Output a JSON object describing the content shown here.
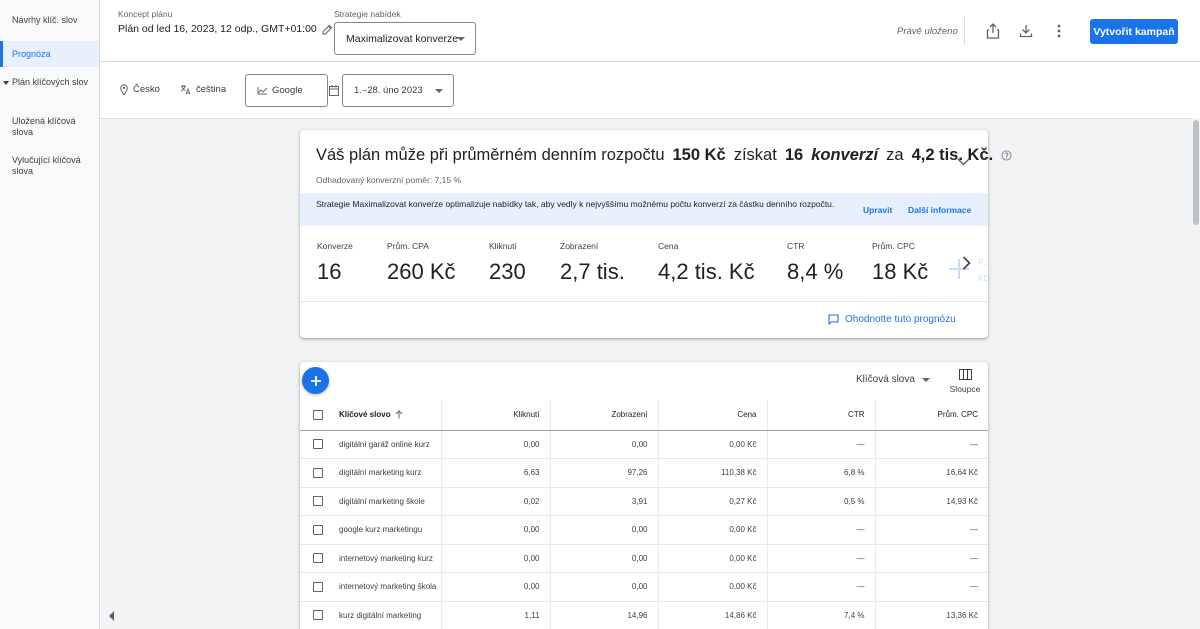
{
  "sidebar": {
    "items": [
      {
        "label": "Návrhy klíč. slov"
      },
      {
        "label": "Prognóza"
      },
      {
        "label": "Plán klíčových slov"
      },
      {
        "label": "Uložená klíčová slova"
      },
      {
        "label": "Vylučující klíčová slova"
      }
    ],
    "collapse_icon": "chevron-left-icon"
  },
  "header": {
    "plan_label": "Koncept plánu",
    "plan_name": "Plán od led 16, 2023, 12 odp., GMT+01:00",
    "strategy_label": "Strategie nabídek",
    "strategy_value": "Maximalizovat konverze",
    "saved_status": "Právě uloženo",
    "share_icon": "share-icon",
    "download_icon": "download-icon",
    "more_icon": "more-vert-icon",
    "create_campaign": "Vytvořit kampaň",
    "accent_color": "#1a73e8"
  },
  "filters": {
    "location": "Česko",
    "language": "čeština",
    "network": "Google",
    "date_range": "1.–28. úno 2023"
  },
  "forecast": {
    "headline_1": "Váš plán může při průměrném denním rozpočtu",
    "budget": "150 Kč",
    "headline_2": "získat",
    "conversions": "16",
    "conversions_word": "konverzí",
    "headline_3": "za",
    "cost": "4,2 tis. Kč.",
    "ratio": "Odhadovaný konverzní poměr: 7,15 %",
    "info_text": "Strategie Maximalizovat konverze optimalizuje nabídky tak, aby vedly k nejvyššímu možnému počtu konverzí za částku denního rozpočtu.",
    "edit_link": "Upravit",
    "more_info_link": "Další informace",
    "metrics": [
      {
        "label": "Konverze",
        "value": "16"
      },
      {
        "label": "Prům. CPA",
        "value": "260 Kč"
      },
      {
        "label": "Kliknutí",
        "value": "230"
      },
      {
        "label": "Zobrazení",
        "value": "2,7 tis."
      },
      {
        "label": "Cena",
        "value": "4,2 tis. Kč"
      },
      {
        "label": "CTR",
        "value": "8,4 %"
      },
      {
        "label": "Prům. CPC",
        "value": "18 Kč"
      }
    ],
    "faded_metric_label": "P…",
    "faded_metric_sub": "KO…",
    "rate_link": "Ohodnotte tuto prognózu"
  },
  "keywords": {
    "selector": "Klíčová slova",
    "columns_label": "Sloupce",
    "headers": [
      "Klíčové slovo",
      "Kliknutí",
      "Zobrazení",
      "Cena",
      "CTR",
      "Prům. CPC"
    ],
    "rows": [
      [
        "digitální garáž online kurz",
        "0,00",
        "0,00",
        "0,00 Kč",
        "—",
        "—"
      ],
      [
        "digitální marketing kurz",
        "6,63",
        "97,26",
        "110,38 Kč",
        "6,8 %",
        "16,64 Kč"
      ],
      [
        "digitální marketing škole",
        "0,02",
        "3,91",
        "0,27 Kč",
        "0,5 %",
        "14,93 Kč"
      ],
      [
        "google kurz marketingu",
        "0,00",
        "0,00",
        "0,00 Kč",
        "—",
        "—"
      ],
      [
        "internetový marketing kurz",
        "0,00",
        "0,00",
        "0,00 Kč",
        "—",
        "—"
      ],
      [
        "internetový marketing škola",
        "0,00",
        "0,00",
        "0,00 Kč",
        "—",
        "—"
      ],
      [
        "kurz digitální marketing",
        "1,11",
        "14,96",
        "14,86 Kč",
        "7,4 %",
        "13,36 Kč"
      ]
    ]
  }
}
